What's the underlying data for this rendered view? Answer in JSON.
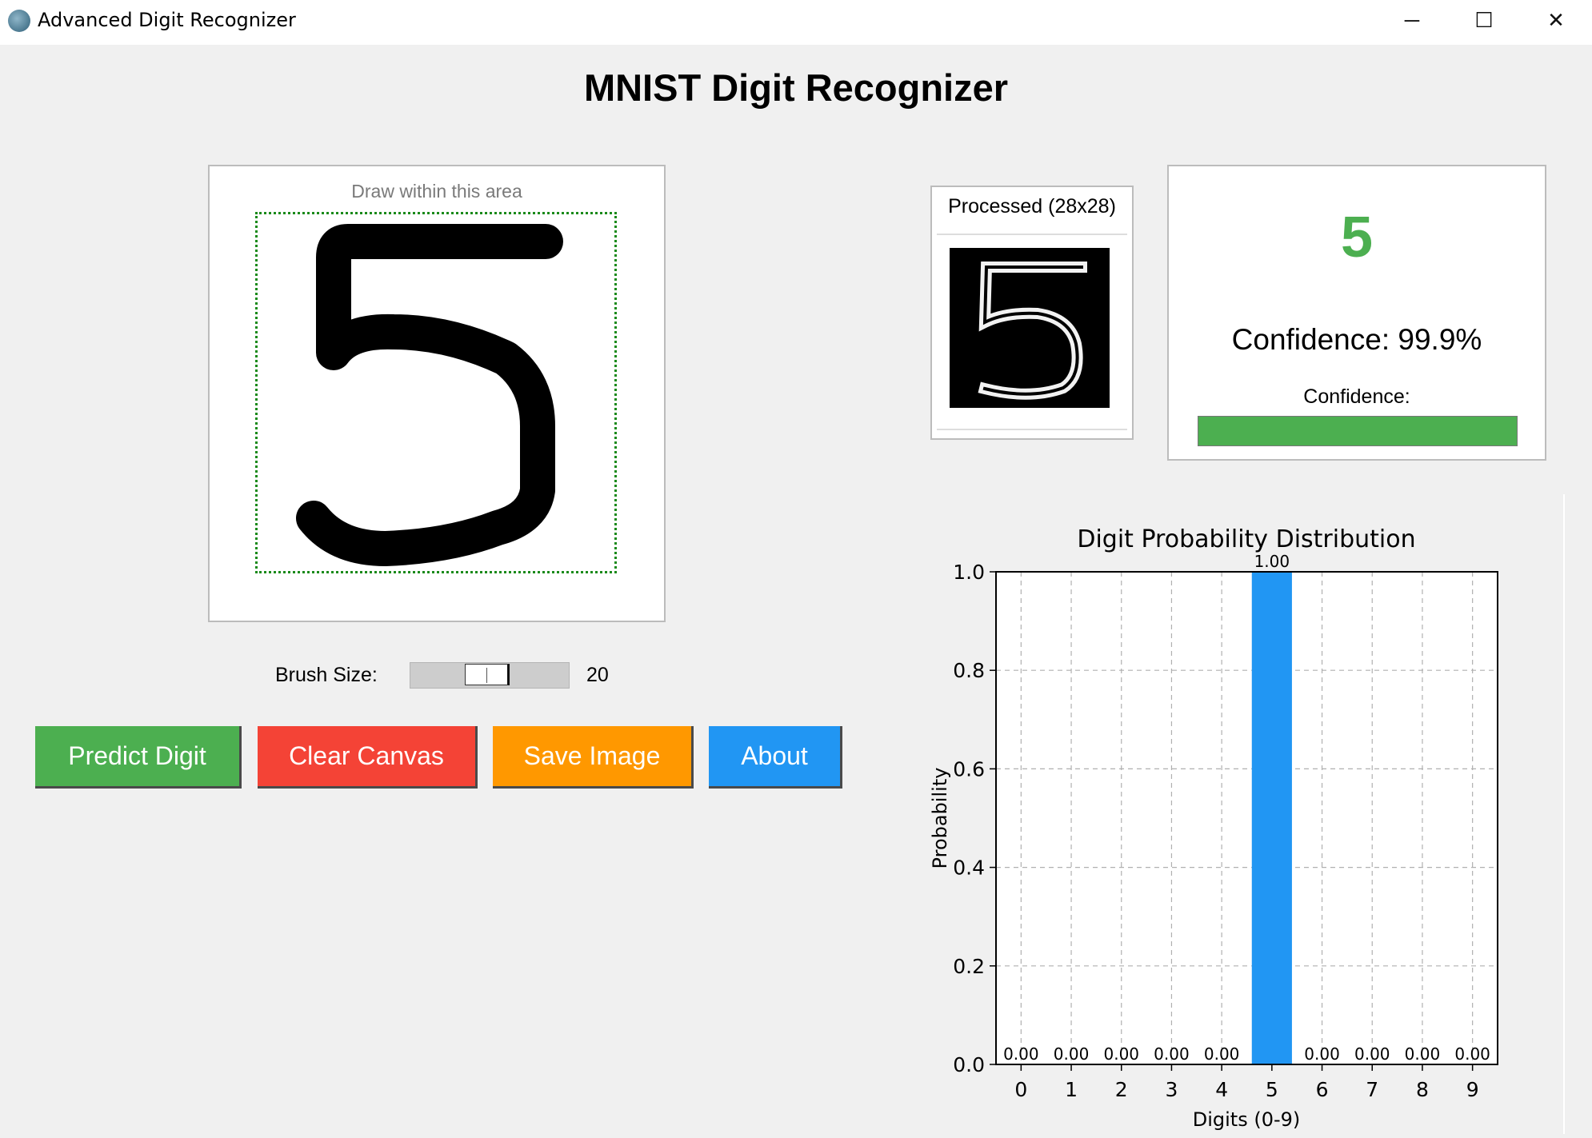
{
  "window": {
    "title": "Advanced Digit Recognizer",
    "controls": {
      "minimize": "─",
      "maximize": "☐",
      "close": "✕"
    }
  },
  "heading": "MNIST Digit Recognizer",
  "canvas": {
    "hint": "Draw within this area",
    "drawn_digit": "5"
  },
  "brush": {
    "label": "Brush Size:",
    "value": "20",
    "value_fraction": 0.48
  },
  "buttons": {
    "predict": "Predict Digit",
    "clear": "Clear Canvas",
    "save": "Save Image",
    "about": "About"
  },
  "colors": {
    "predict": "#4caf50",
    "clear": "#f44336",
    "save": "#ff9800",
    "about": "#2196f3",
    "bar": "#2196f3",
    "confidence_fill": "#4caf50"
  },
  "processed": {
    "label": "Processed (28x28)"
  },
  "result": {
    "digit": "5",
    "confidence_text": "Confidence: 99.9%",
    "bar_label": "Confidence:",
    "confidence_value": 0.999
  },
  "chart_data": {
    "type": "bar",
    "title": "Digit Probability Distribution",
    "xlabel": "Digits (0-9)",
    "ylabel": "Probability",
    "categories": [
      "0",
      "1",
      "2",
      "3",
      "4",
      "5",
      "6",
      "7",
      "8",
      "9"
    ],
    "values": [
      0.0,
      0.0,
      0.0,
      0.0,
      0.0,
      1.0,
      0.0,
      0.0,
      0.0,
      0.0
    ],
    "value_labels": [
      "0.00",
      "0.00",
      "0.00",
      "0.00",
      "0.00",
      "1.00",
      "0.00",
      "0.00",
      "0.00",
      "0.00"
    ],
    "yticks": [
      "0.0",
      "0.2",
      "0.4",
      "0.6",
      "0.8",
      "1.0"
    ],
    "ylim": [
      0,
      1
    ],
    "grid": true
  }
}
